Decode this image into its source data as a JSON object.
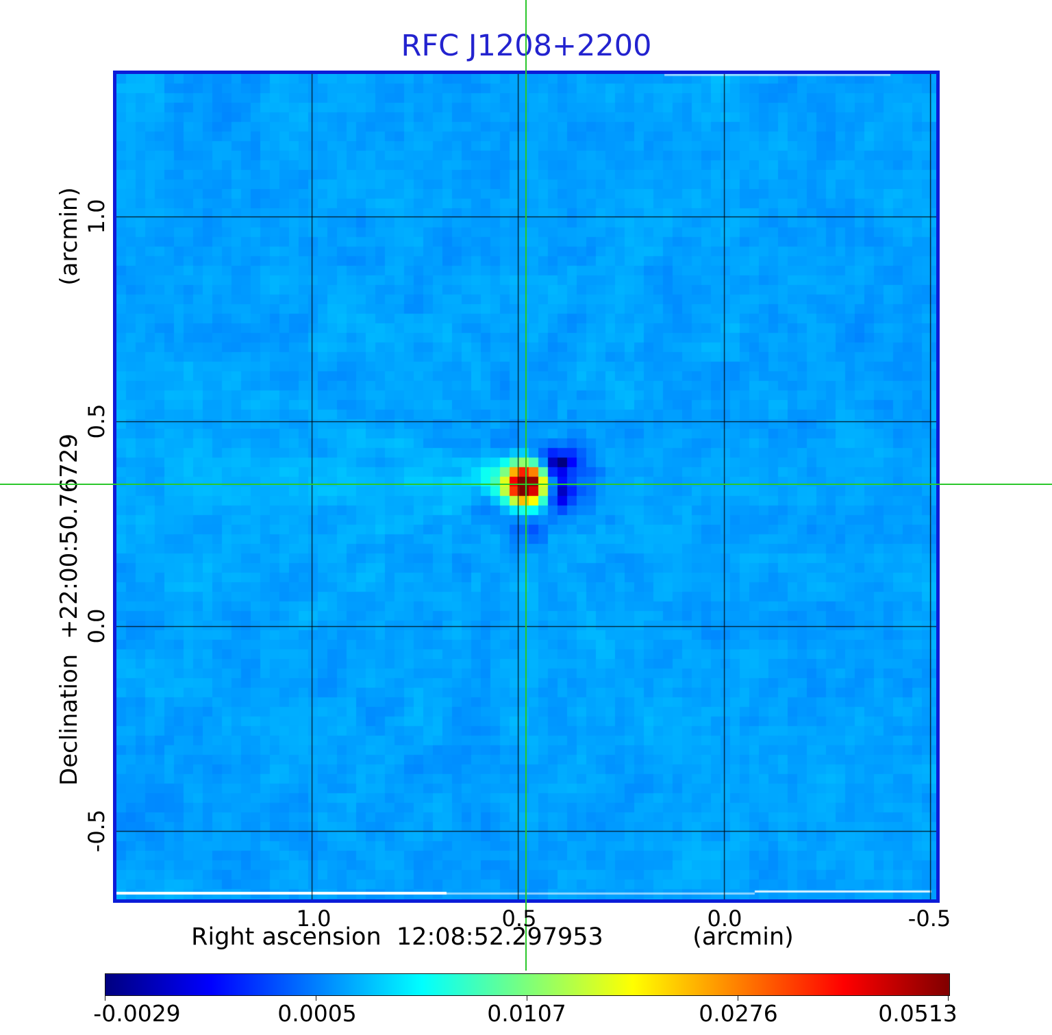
{
  "title": {
    "text": "RFC J1208+2200",
    "color": "#2323cf"
  },
  "axes": {
    "x": {
      "label": "Right ascension  12:08:52.297953",
      "unit": "(arcmin)",
      "ticks": [
        {
          "label": "1.0",
          "arcmin": 1.0
        },
        {
          "label": "0.5",
          "arcmin": 0.5
        },
        {
          "label": "0.0",
          "arcmin": 0.0
        },
        {
          "label": "-0.5",
          "arcmin": -0.5
        }
      ]
    },
    "y": {
      "label": "Declination  +22:00:50.76729",
      "unit": "(arcmin)",
      "ticks": [
        {
          "label": "1.0",
          "arcmin": 1.0
        },
        {
          "label": "0.5",
          "arcmin": 0.5
        },
        {
          "label": "0.0",
          "arcmin": 0.0
        },
        {
          "label": "-0.5",
          "arcmin": -0.5
        }
      ]
    }
  },
  "crosshair": {
    "ra_arcmin": 0.48,
    "dec_arcmin": 0.346,
    "color": "#2bc72b"
  },
  "colorbar": {
    "colormap": "jet",
    "tick_labels": [
      "-0.0029",
      "0.0005",
      "0.0107",
      "0.0276",
      "0.0513"
    ],
    "tick_values": [
      -0.0029,
      0.0005,
      0.0107,
      0.0276,
      0.0513
    ]
  },
  "colors": {
    "title": "#2323cf",
    "frame": "#0b1cd8",
    "grid": "#000000",
    "crosshair": "#2bc72b",
    "background_sky": "#1b9fe8",
    "peak_core": "#800000",
    "negative_sidelobe": "#000080"
  },
  "chart_data": {
    "type": "heatmap",
    "title": "RFC J1208+2200",
    "xlabel": "Right ascension  12:08:52.297953 (arcmin)",
    "ylabel": "Declination  +22:00:50.76729 (arcmin)",
    "x_ticks_arcmin": [
      1.0,
      0.5,
      0.0,
      -0.5
    ],
    "y_ticks_arcmin": [
      1.0,
      0.5,
      0.0,
      -0.5
    ],
    "x_range_arcmin": [
      1.49,
      -0.51
    ],
    "y_range_arcmin": [
      -0.67,
      1.36
    ],
    "grid_spacing_arcmin": 0.5,
    "grid": true,
    "source": {
      "name": "RFC J1208+2200",
      "ra": "12:08:52.297953",
      "dec": "+22:00:50.76729",
      "x_offset_arcmin": 0.48,
      "y_offset_arcmin": 0.346,
      "peak_value": 0.0513
    },
    "intensity_scale": {
      "colormap": "jet",
      "stretch": "sqrt",
      "min": -0.0029,
      "max": 0.0513,
      "ticks": [
        -0.0029,
        0.0005,
        0.0107,
        0.0276,
        0.0513
      ]
    }
  }
}
